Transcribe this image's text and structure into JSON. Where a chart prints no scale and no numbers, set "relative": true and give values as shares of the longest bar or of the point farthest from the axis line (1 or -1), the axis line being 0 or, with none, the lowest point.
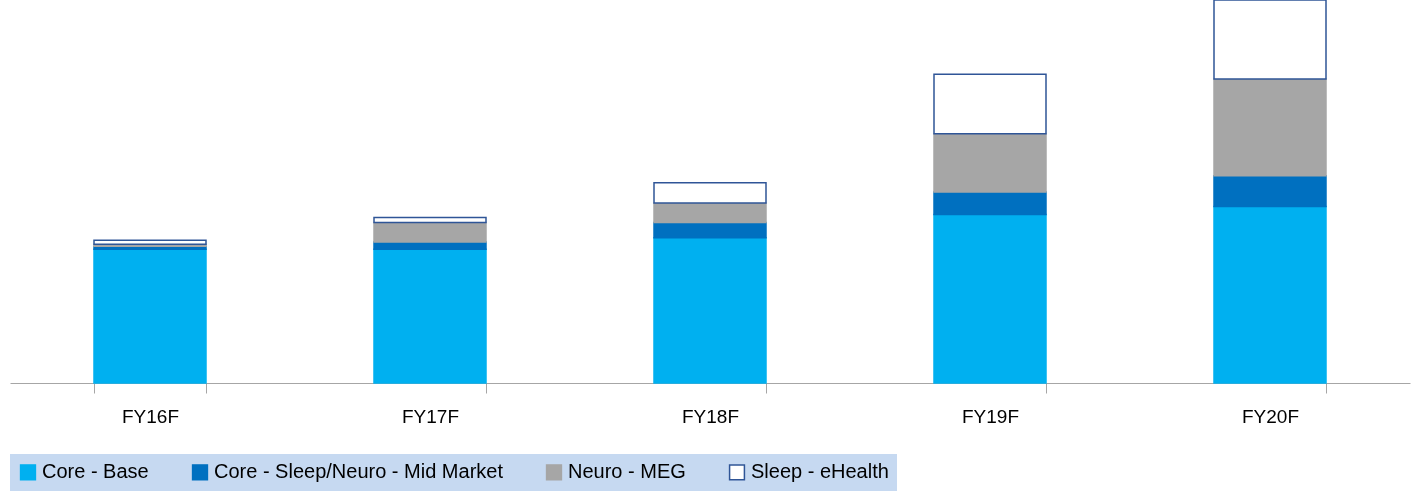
{
  "chart_data": {
    "type": "bar",
    "stacked": true,
    "relative": true,
    "legend": "bottom",
    "grid": false,
    "categories": [
      "FY16F",
      "FY17F",
      "FY18F",
      "FY19F",
      "FY20F"
    ],
    "series": [
      {
        "name": "Core - Base",
        "color": "#00b0f0",
        "values": [
          0.349,
          0.349,
          0.379,
          0.44,
          0.461
        ]
      },
      {
        "name": "Core - Sleep/Neuro - Mid Market",
        "color": "#0070c0",
        "values": [
          0.008,
          0.019,
          0.04,
          0.059,
          0.08
        ]
      },
      {
        "name": "Neuro - MEG",
        "color": "#a6a6a6",
        "values": [
          0.005,
          0.051,
          0.051,
          0.152,
          0.253
        ]
      },
      {
        "name": "Sleep - eHealth",
        "color": "#ffffff",
        "values": [
          0.011,
          0.013,
          0.053,
          0.155,
          0.206
        ]
      }
    ]
  }
}
